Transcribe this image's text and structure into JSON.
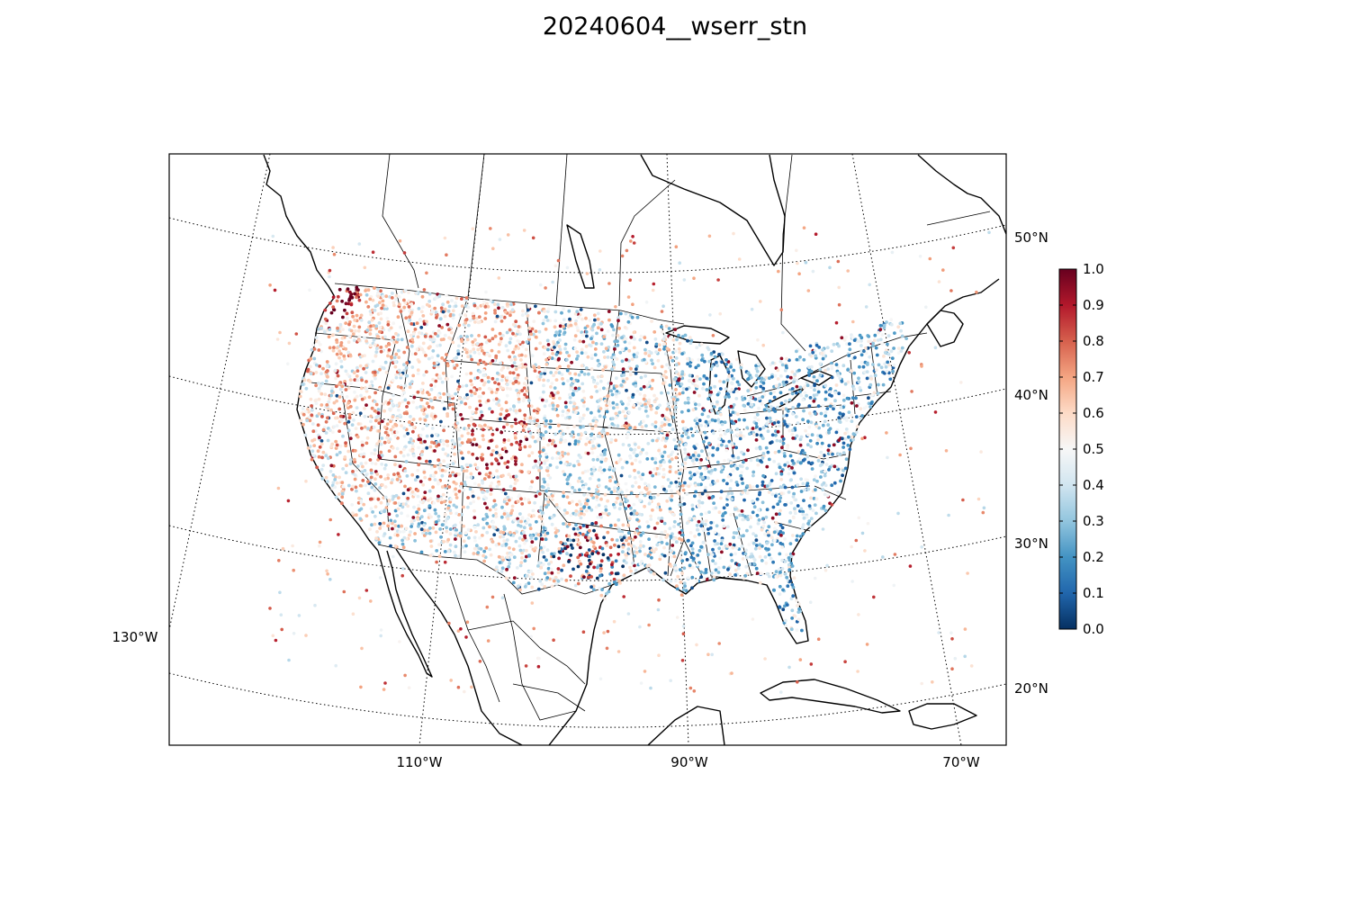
{
  "title": "20240604__wserr_stn",
  "map": {
    "projection": "lambert-conformal",
    "lon_labels": [
      "130°W",
      "110°W",
      "90°W",
      "70°W"
    ],
    "lat_labels": [
      "50°N",
      "40°N",
      "30°N",
      "20°N"
    ]
  },
  "colorbar": {
    "colormap": "RdBu_r",
    "ticks": [
      "0.0",
      "0.1",
      "0.2",
      "0.3",
      "0.4",
      "0.5",
      "0.6",
      "0.7",
      "0.8",
      "0.9",
      "1.0"
    ],
    "range": [
      0.0,
      1.0
    ],
    "colors": [
      "#053061",
      "#2166ac",
      "#4393c3",
      "#92c5de",
      "#d1e5f0",
      "#f7f7f7",
      "#fddbc7",
      "#f4a582",
      "#d6604d",
      "#b2182b",
      "#67001f"
    ]
  }
}
